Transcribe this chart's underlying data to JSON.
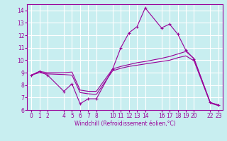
{
  "xlabel": "Windchill (Refroidissement éolien,°C)",
  "background_color": "#c8eef0",
  "grid_color": "#ffffff",
  "line_color": "#990099",
  "xlim": [
    -0.5,
    23.5
  ],
  "ylim": [
    6.0,
    14.5
  ],
  "yticks": [
    6,
    7,
    8,
    9,
    10,
    11,
    12,
    13,
    14
  ],
  "xtick_positions": [
    0,
    1,
    2,
    4,
    5,
    6,
    7,
    8,
    10,
    11,
    12,
    13,
    14,
    16,
    17,
    18,
    19,
    20,
    22,
    23
  ],
  "xtick_labels": [
    "0",
    "1",
    "2",
    "4",
    "5",
    "6",
    "7",
    "8",
    "10",
    "11",
    "12",
    "13",
    "14",
    "16",
    "17",
    "18",
    "19",
    "20",
    "22",
    "23"
  ],
  "line1_x": [
    0,
    1,
    2,
    4,
    5,
    6,
    7,
    8,
    10,
    11,
    12,
    13,
    14,
    16,
    17,
    18,
    19,
    20,
    22,
    23
  ],
  "line1_y": [
    8.8,
    9.1,
    8.8,
    7.5,
    8.1,
    6.5,
    6.9,
    6.9,
    9.3,
    11.0,
    12.2,
    12.7,
    14.2,
    12.6,
    12.9,
    12.1,
    10.8,
    10.1,
    6.6,
    6.4
  ],
  "line2_x": [
    0,
    1,
    2,
    4,
    5,
    6,
    7,
    8,
    10,
    11,
    12,
    13,
    14,
    16,
    17,
    18,
    19,
    20,
    22,
    23
  ],
  "line2_y": [
    8.8,
    9.1,
    9.0,
    9.0,
    9.05,
    7.6,
    7.5,
    7.5,
    9.3,
    9.5,
    9.65,
    9.8,
    9.9,
    10.15,
    10.3,
    10.5,
    10.7,
    10.15,
    6.6,
    6.4
  ],
  "line3_x": [
    0,
    1,
    2,
    4,
    5,
    6,
    7,
    8,
    10,
    11,
    12,
    13,
    14,
    16,
    17,
    18,
    19,
    20,
    22,
    23
  ],
  "line3_y": [
    8.8,
    9.0,
    8.9,
    8.85,
    8.8,
    7.4,
    7.3,
    7.25,
    9.15,
    9.35,
    9.5,
    9.6,
    9.7,
    9.9,
    10.0,
    10.2,
    10.35,
    9.95,
    6.55,
    6.35
  ],
  "ylabel_fontsize": 5.5,
  "xlabel_fontsize": 5.5,
  "tick_labelsize": 5.5
}
